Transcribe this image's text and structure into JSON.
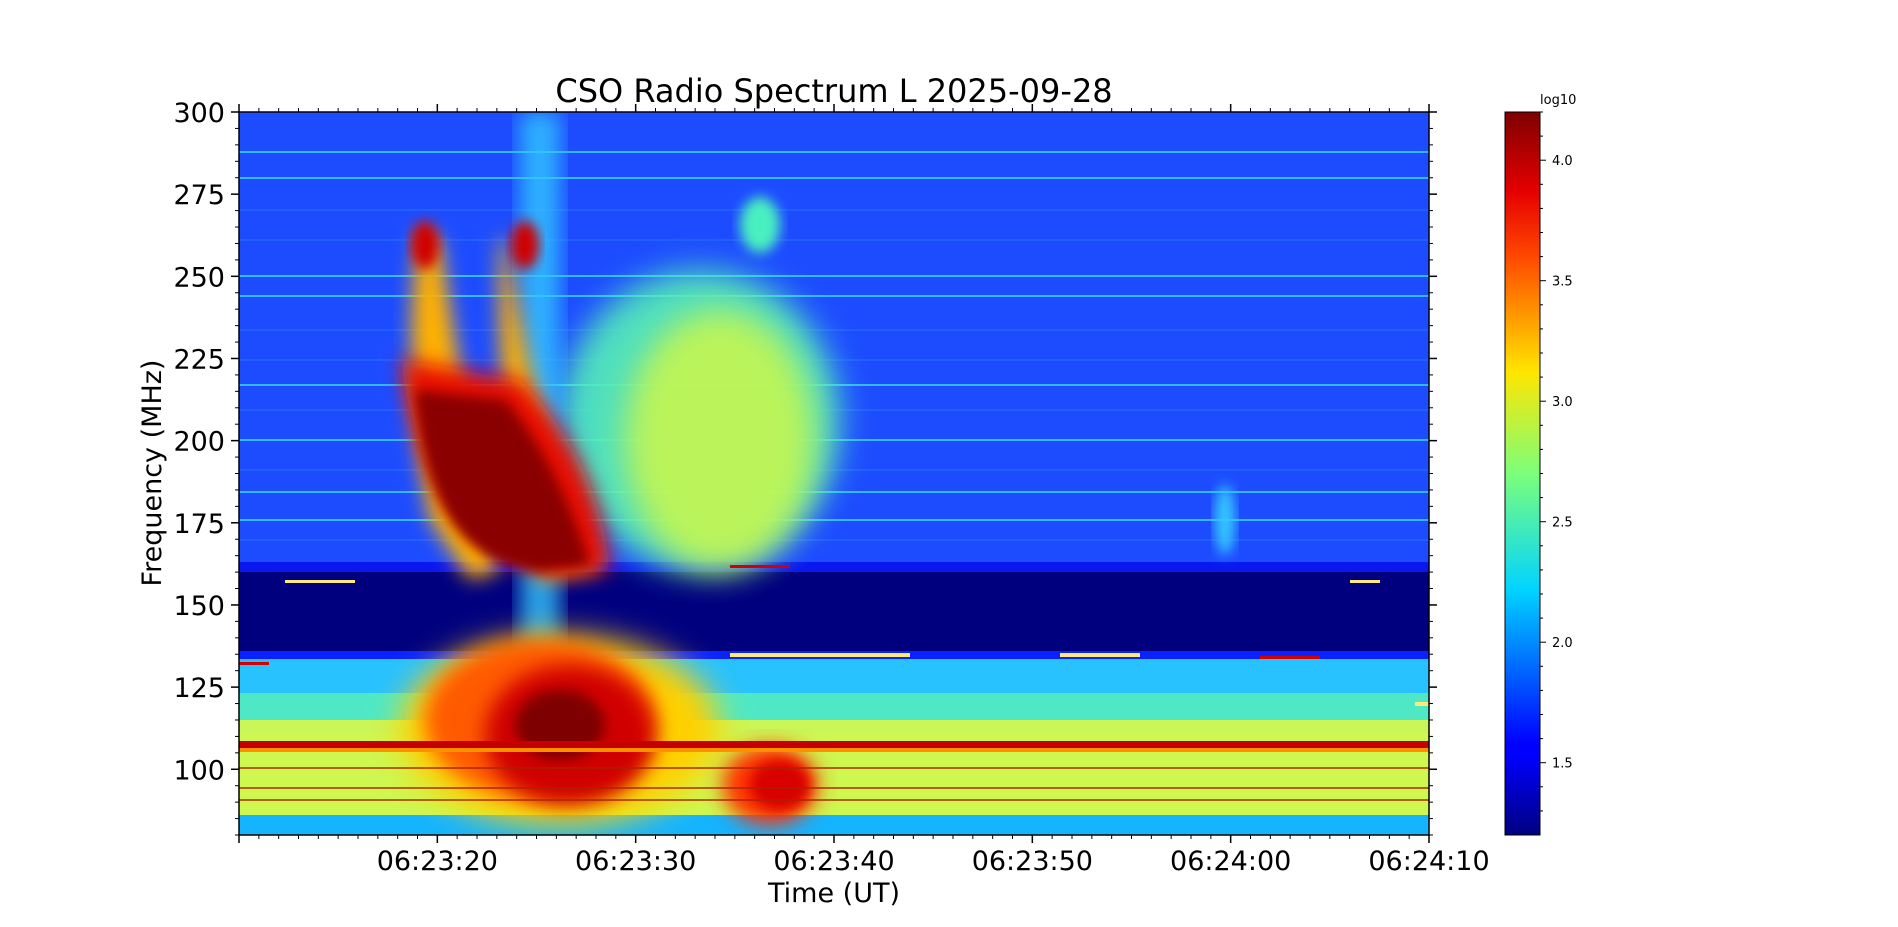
{
  "chart_data": {
    "type": "heatmap",
    "title": "CSO Radio Spectrum L 2025-09-28",
    "xlabel": "Time (UT)",
    "ylabel": "Frequency (MHz)",
    "x_unit": "UT time",
    "xlim": [
      "06:23:10",
      "06:24:10"
    ],
    "ylim": [
      80,
      300
    ],
    "x_ticks": [
      "06:23:20",
      "06:23:30",
      "06:23:40",
      "06:23:50",
      "06:24:00",
      "06:24:10"
    ],
    "y_ticks": [
      "100",
      "125",
      "150",
      "175",
      "200",
      "225",
      "250",
      "275",
      "300"
    ],
    "colorbar": {
      "label": "log10",
      "range": [
        1.2,
        4.2
      ],
      "ticks": [
        "1.5",
        "2.0",
        "2.5",
        "3.0",
        "3.5",
        "4.0"
      ],
      "colormap": "jet"
    },
    "features": [
      {
        "kind": "burst",
        "t_start": "06:23:18",
        "t_end": "06:23:28",
        "f_low": 160,
        "f_high": 270,
        "peak_log10": 4.2
      },
      {
        "kind": "burst",
        "t_start": "06:23:18",
        "t_end": "06:23:38",
        "f_low": 80,
        "f_high": 137,
        "peak_log10": 4.2
      },
      {
        "kind": "diffuse emission",
        "t_start": "06:23:28",
        "t_end": "06:23:42",
        "f_low": 160,
        "f_high": 240,
        "peak_log10": 3.1
      },
      {
        "kind": "data gap (filtered band)",
        "f_low": 138,
        "f_high": 160
      }
    ]
  },
  "colors": {
    "background": "#ffffff",
    "axis": "#000000"
  }
}
